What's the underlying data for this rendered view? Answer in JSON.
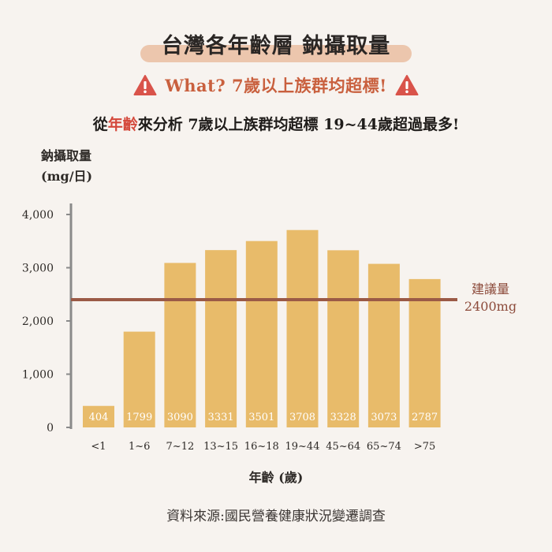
{
  "header": {
    "title": "台灣各年齡層 鈉攝取量",
    "warning": "What? 7歲以上族群均超標!",
    "subtitle_pre": "從",
    "subtitle_highlight": "年齡",
    "subtitle_post": "來分析 7歲以上族群均超標 19~44歲超過最多!"
  },
  "colors": {
    "bar": "#e8bb6a",
    "reference_line": "#9b5a46",
    "highlight": "#d4483b",
    "warning": "#c9603e",
    "axis": "#8a8a8a"
  },
  "chart_data": {
    "type": "bar",
    "title": "台灣各年齡層 鈉攝取量",
    "ylabel_line1": "鈉攝取量",
    "ylabel_line2": "(mg/日)",
    "xlabel": "年齡 (歲)",
    "categories": [
      "<1",
      "1~6",
      "7~12",
      "13~15",
      "16~18",
      "19~44",
      "45~64",
      "65~74",
      ">75"
    ],
    "values": [
      404,
      1799,
      3090,
      3331,
      3501,
      3708,
      3328,
      3073,
      2787
    ],
    "value_labels": [
      "404",
      "1799",
      "3090",
      "3331",
      "3501",
      "3708",
      "3328",
      "3073",
      "2787"
    ],
    "ylim": [
      0,
      4000
    ],
    "yticks": [
      0,
      1000,
      2000,
      3000,
      4000
    ],
    "ytick_labels": [
      "0",
      "1,000",
      "2,000",
      "3,000",
      "4,000"
    ],
    "grid": false,
    "reference_line": {
      "value": 2400,
      "label_line1": "建議量",
      "label_line2": "2400mg"
    }
  },
  "footer": {
    "source": "資料來源:國民營養健康狀況變遷調查"
  }
}
